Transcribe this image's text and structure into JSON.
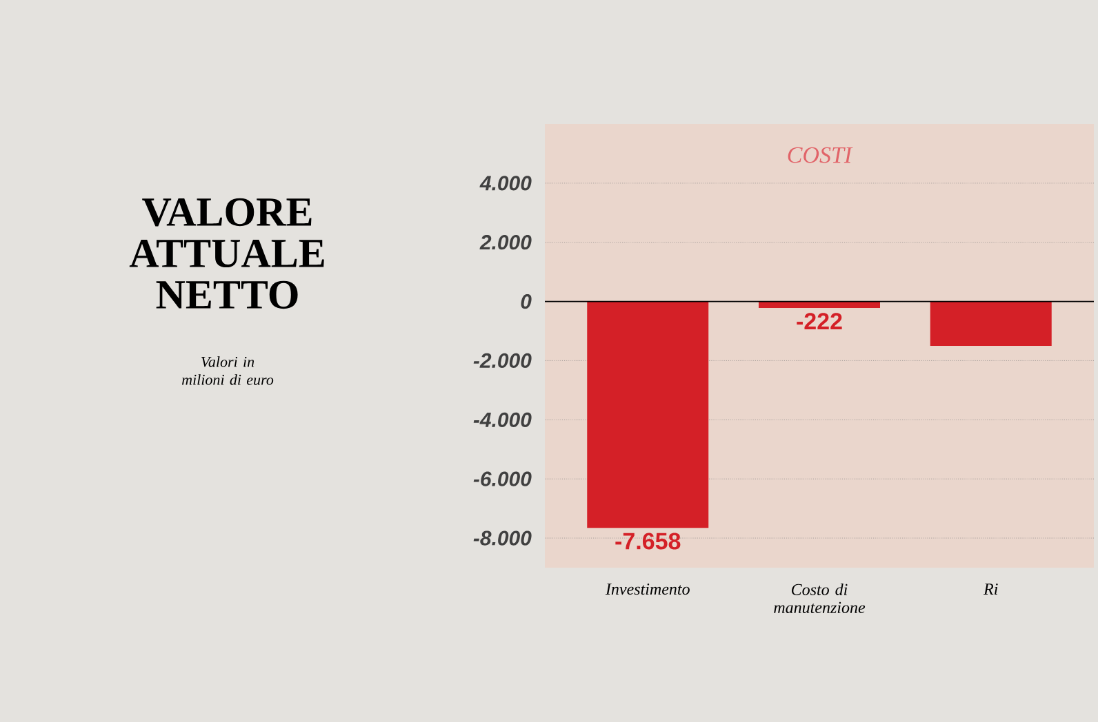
{
  "chart_data": {
    "type": "bar",
    "title": "VALORE ATTUALE NETTO",
    "subtitle": "Valori in milioni di euro",
    "annotations": [
      "COSTI"
    ],
    "categories": [
      "Investimento",
      "Costo di manutenzione",
      "Ri"
    ],
    "values": [
      -7658,
      -222,
      -1500
    ],
    "value_labels": [
      "-7.658",
      "-222",
      null
    ],
    "color": "#d42027",
    "ylim": [
      -9000,
      6000
    ],
    "yticks": [
      {
        "value": 4000,
        "label": "4.000"
      },
      {
        "value": 2000,
        "label": "2.000"
      },
      0,
      {
        "value": -2000,
        "label": "-2.000"
      },
      {
        "value": -4000,
        "label": "-4.000"
      },
      {
        "value": -6000,
        "label": "-6.000"
      },
      {
        "value": -8000,
        "label": "-8.000"
      }
    ],
    "grid": "y"
  }
}
